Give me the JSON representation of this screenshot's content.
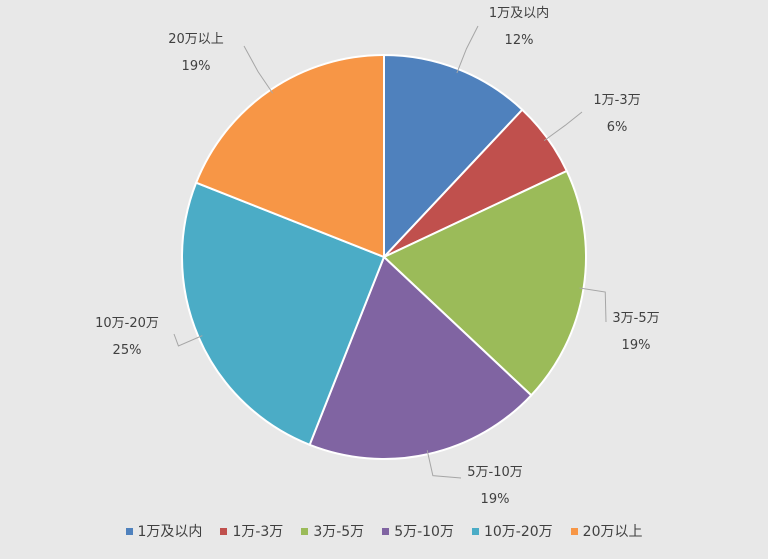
{
  "chart_data": {
    "type": "pie",
    "categories": [
      "1万及以内",
      "1万-3万",
      "3万-5万",
      "5万-10万",
      "10万-20万",
      "20万以上"
    ],
    "values": [
      12,
      6,
      19,
      19,
      25,
      19
    ],
    "data_labels": [
      "12%",
      "6%",
      "19%",
      "19%",
      "25%",
      "19%"
    ],
    "colors": [
      "#4f81bd",
      "#c0504d",
      "#9bbb59",
      "#8064a2",
      "#4bacc6",
      "#f79646"
    ],
    "legend_position": "bottom"
  }
}
